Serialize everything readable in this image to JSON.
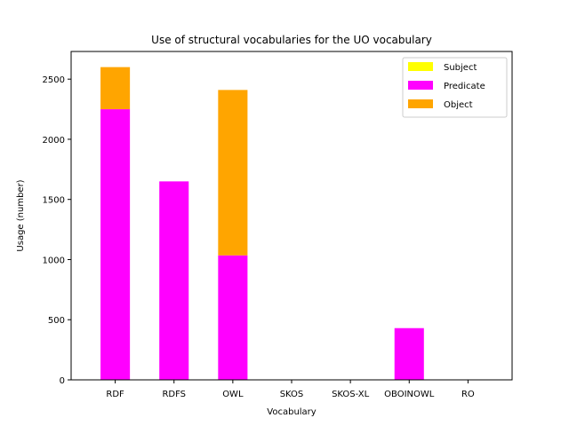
{
  "chart_data": {
    "type": "bar",
    "stacked": true,
    "title": "Use of structural vocabularies for the UO vocabulary",
    "xlabel": "Vocabulary",
    "ylabel": "Usage (number)",
    "categories": [
      "RDF",
      "RDFS",
      "OWL",
      "SKOS",
      "SKOS-XL",
      "OBOINOWL",
      "RO"
    ],
    "series": [
      {
        "name": "Subject",
        "color": "#ffff00",
        "values": [
          0,
          0,
          0,
          0,
          0,
          0,
          0
        ]
      },
      {
        "name": "Predicate",
        "color": "#ff00ff",
        "values": [
          2250,
          1650,
          1035,
          0,
          0,
          430,
          0
        ]
      },
      {
        "name": "Object",
        "color": "#ffa500",
        "values": [
          350,
          0,
          1375,
          0,
          0,
          0,
          0
        ]
      }
    ],
    "ylim": [
      0,
      2730
    ],
    "yticks": [
      0,
      500,
      1000,
      1500,
      2000,
      2500
    ],
    "legend": "top-right",
    "grid": false
  }
}
